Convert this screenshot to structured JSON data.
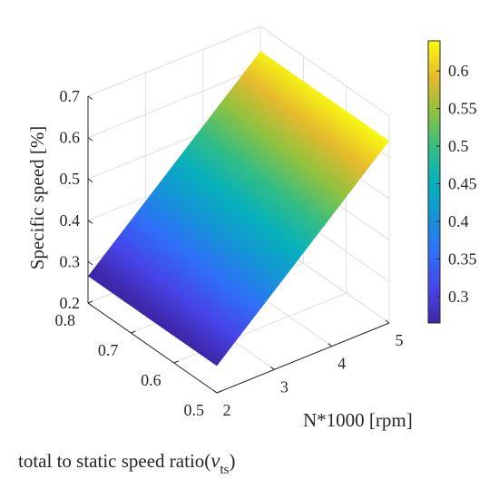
{
  "chart_data": {
    "type": "surface",
    "title": "",
    "zlabel": "Specific speed [%]",
    "xlabel": "N*1000 [rpm]",
    "ylabel_text": "total to static speed ratio(",
    "ylabel_symbol": "ν",
    "ylabel_subscript": "ts",
    "ylabel_close": ")",
    "x_ticks": [
      "2",
      "3",
      "4",
      "5"
    ],
    "y_ticks": [
      "0.5",
      "0.6",
      "0.7",
      "0.8"
    ],
    "z_ticks": [
      "0.2",
      "0.3",
      "0.4",
      "0.5",
      "0.6",
      "0.7"
    ],
    "colorbar_ticks": [
      "0.3",
      "0.35",
      "0.4",
      "0.45",
      "0.5",
      "0.55",
      "0.6"
    ],
    "xlim": [
      2,
      5
    ],
    "ylim": [
      0.5,
      0.8
    ],
    "zlim": [
      0.2,
      0.7
    ],
    "clim": [
      0.265,
      0.64
    ],
    "colormap": "parula",
    "grid": true,
    "surface": {
      "x": [
        2,
        5
      ],
      "y": [
        0.5,
        0.8
      ],
      "z": [
        [
          0.265,
          0.64
        ],
        [
          0.265,
          0.64
        ]
      ],
      "z_rows_index_y": [
        0.5,
        0.8
      ],
      "z_cols_index_x": [
        2,
        5
      ]
    }
  }
}
